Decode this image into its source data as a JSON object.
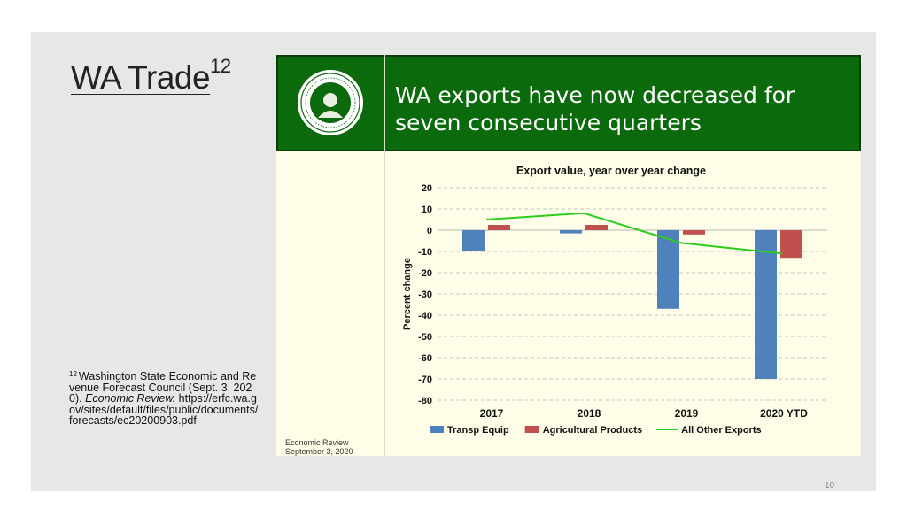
{
  "slide": {
    "title": "WA Trade",
    "title_sup": "12",
    "page_number": "10",
    "footnote": {
      "marker": "12",
      "text_before": "Washington State Economic and Revenue Forecast Council (Sept. 3, 2020). ",
      "italic": "Economic Review.",
      "text_after": " https://erfc.wa.gov/sites/default/files/public/documents/forecasts/ec20200903.pdf"
    }
  },
  "figure": {
    "banner_line1": "WA exports have now decreased for",
    "banner_line2": "seven consecutive quarters",
    "seal_icon": "washington-state-seal-icon",
    "note_line1": "Economic Review",
    "note_line2": "September 3, 2020",
    "banner_color": "#0b6a0b"
  },
  "chart_data": {
    "type": "bar",
    "title": "Export value, year over year change",
    "ylabel": "Percent change",
    "xlabel": "",
    "ylim": [
      -80,
      20
    ],
    "yticks": [
      20,
      10,
      0,
      -10,
      -20,
      -30,
      -40,
      -50,
      -60,
      -70,
      -80
    ],
    "categories": [
      "2017",
      "2018",
      "2019",
      "2020 YTD"
    ],
    "grid": true,
    "legend_position": "bottom",
    "series": [
      {
        "name": "Transp Equip",
        "kind": "bar",
        "color": "#4f81bd",
        "values": [
          -10,
          -1.5,
          -37,
          -70
        ]
      },
      {
        "name": "Agricultural Products",
        "kind": "bar",
        "color": "#c0504d",
        "values": [
          2.5,
          2.5,
          -2,
          -13
        ]
      },
      {
        "name": "All Other Exports",
        "kind": "line",
        "color": "#2ecc1f",
        "values": [
          5,
          8,
          -6,
          -11
        ]
      }
    ]
  }
}
